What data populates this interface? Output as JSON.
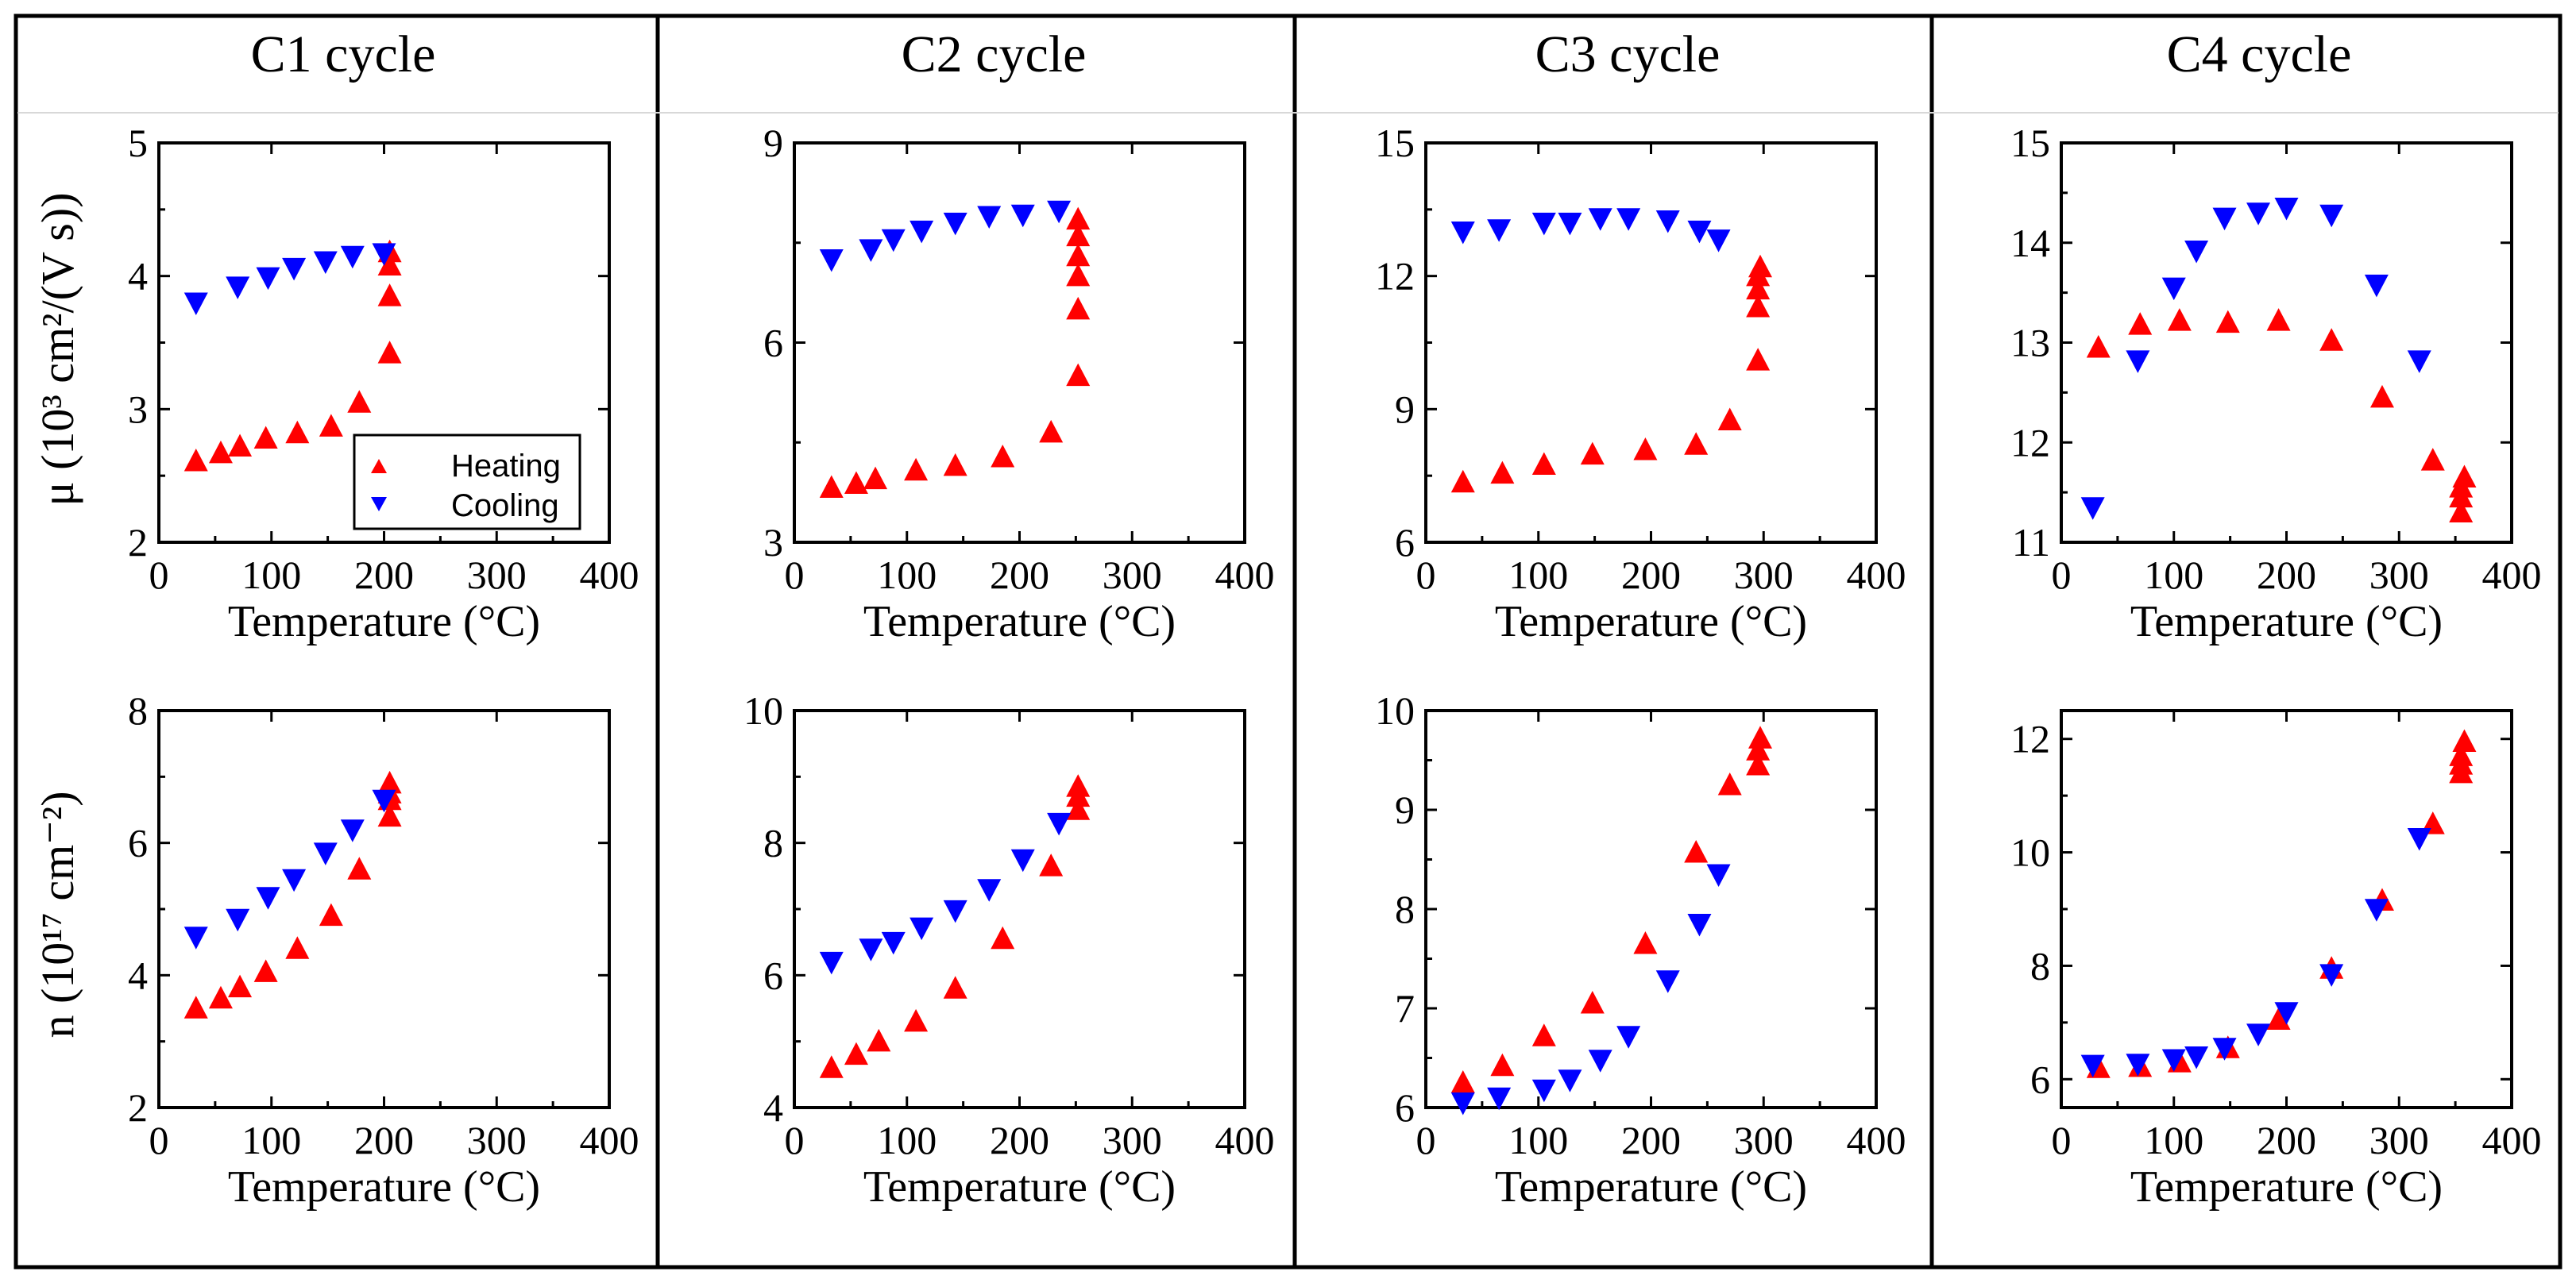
{
  "colors": {
    "heating": "#ff0000",
    "cooling": "#0000ff",
    "frame": "#000000"
  },
  "legend": {
    "heating": "Heating",
    "cooling": "Cooling",
    "placement": "bottom-right of first panel"
  },
  "columns": [
    {
      "title": "C1 cycle"
    },
    {
      "title": "C2 cycle"
    },
    {
      "title": "C3 cycle"
    },
    {
      "title": "C4 cycle"
    }
  ],
  "row_labels": {
    "mobility": "μ (10³ cm²/(V s))",
    "density": "n (10¹⁷ cm⁻²)"
  },
  "chart_data": [
    {
      "type": "scatter",
      "cycle": "C1 cycle",
      "quantity": "mobility",
      "xlabel": "Temperature (°C)",
      "ylabel": "μ (10³ cm²/(V s))",
      "xlim": [
        0,
        400
      ],
      "ylim": [
        2,
        5
      ],
      "xticks": [
        0,
        100,
        200,
        300,
        400
      ],
      "yticks": [
        2,
        3,
        4,
        5
      ],
      "series": [
        {
          "name": "Heating",
          "marker": "triangle-up",
          "points": [
            [
              33,
              2.61
            ],
            [
              55,
              2.67
            ],
            [
              72,
              2.72
            ],
            [
              95,
              2.78
            ],
            [
              123,
              2.82
            ],
            [
              153,
              2.87
            ],
            [
              178,
              3.05
            ],
            [
              205,
              3.42
            ],
            [
              205,
              3.85
            ],
            [
              205,
              4.08
            ],
            [
              205,
              4.18
            ]
          ]
        },
        {
          "name": "Cooling",
          "marker": "triangle-down",
          "points": [
            [
              33,
              3.8
            ],
            [
              70,
              3.92
            ],
            [
              97,
              3.99
            ],
            [
              120,
              4.06
            ],
            [
              148,
              4.11
            ],
            [
              172,
              4.15
            ],
            [
              200,
              4.17
            ]
          ]
        }
      ]
    },
    {
      "type": "scatter",
      "cycle": "C1 cycle",
      "quantity": "density",
      "xlabel": "Temperature (°C)",
      "ylabel": "n (10¹⁷ cm⁻²)",
      "xlim": [
        0,
        400
      ],
      "ylim": [
        2,
        8
      ],
      "xticks": [
        0,
        100,
        200,
        300,
        400
      ],
      "yticks": [
        2,
        4,
        6,
        8
      ],
      "series": [
        {
          "name": "Heating",
          "marker": "triangle-up",
          "points": [
            [
              33,
              3.5
            ],
            [
              55,
              3.65
            ],
            [
              72,
              3.82
            ],
            [
              95,
              4.05
            ],
            [
              123,
              4.4
            ],
            [
              153,
              4.9
            ],
            [
              178,
              5.6
            ],
            [
              205,
              6.4
            ],
            [
              205,
              6.65
            ],
            [
              205,
              6.75
            ],
            [
              205,
              6.9
            ]
          ]
        },
        {
          "name": "Cooling",
          "marker": "triangle-down",
          "points": [
            [
              33,
              4.58
            ],
            [
              70,
              4.85
            ],
            [
              97,
              5.18
            ],
            [
              120,
              5.45
            ],
            [
              148,
              5.85
            ],
            [
              172,
              6.2
            ],
            [
              200,
              6.65
            ]
          ]
        }
      ]
    },
    {
      "type": "scatter",
      "cycle": "C2 cycle",
      "quantity": "mobility",
      "xlabel": "Temperature (°C)",
      "ylabel": "",
      "xlim": [
        0,
        400
      ],
      "ylim": [
        3,
        9
      ],
      "xticks": [
        0,
        100,
        200,
        300,
        400
      ],
      "yticks": [
        3,
        6,
        9
      ],
      "series": [
        {
          "name": "Heating",
          "marker": "triangle-up",
          "points": [
            [
              33,
              3.82
            ],
            [
              55,
              3.88
            ],
            [
              72,
              3.95
            ],
            [
              108,
              4.08
            ],
            [
              143,
              4.15
            ],
            [
              185,
              4.28
            ],
            [
              228,
              4.65
            ],
            [
              252,
              5.5
            ],
            [
              252,
              6.5
            ],
            [
              252,
              7.0
            ],
            [
              252,
              7.3
            ],
            [
              252,
              7.6
            ],
            [
              252,
              7.85
            ]
          ]
        },
        {
          "name": "Cooling",
          "marker": "triangle-down",
          "points": [
            [
              33,
              7.25
            ],
            [
              68,
              7.4
            ],
            [
              88,
              7.55
            ],
            [
              113,
              7.68
            ],
            [
              143,
              7.8
            ],
            [
              173,
              7.9
            ],
            [
              203,
              7.92
            ],
            [
              235,
              7.98
            ]
          ]
        }
      ]
    },
    {
      "type": "scatter",
      "cycle": "C2 cycle",
      "quantity": "density",
      "xlabel": "Temperature (°C)",
      "ylabel": "",
      "xlim": [
        0,
        400
      ],
      "ylim": [
        4,
        10
      ],
      "xticks": [
        0,
        100,
        200,
        300,
        400
      ],
      "yticks": [
        4,
        6,
        8,
        10
      ],
      "series": [
        {
          "name": "Heating",
          "marker": "triangle-up",
          "points": [
            [
              33,
              4.6
            ],
            [
              55,
              4.8
            ],
            [
              75,
              5.0
            ],
            [
              108,
              5.3
            ],
            [
              143,
              5.8
            ],
            [
              185,
              6.55
            ],
            [
              228,
              7.65
            ],
            [
              252,
              8.5
            ],
            [
              252,
              8.7
            ],
            [
              252,
              8.85
            ]
          ]
        },
        {
          "name": "Cooling",
          "marker": "triangle-down",
          "points": [
            [
              33,
              6.2
            ],
            [
              68,
              6.4
            ],
            [
              88,
              6.5
            ],
            [
              113,
              6.72
            ],
            [
              143,
              6.98
            ],
            [
              173,
              7.3
            ],
            [
              203,
              7.75
            ],
            [
              235,
              8.3
            ]
          ]
        }
      ]
    },
    {
      "type": "scatter",
      "cycle": "C3 cycle",
      "quantity": "mobility",
      "xlabel": "Temperature (°C)",
      "ylabel": "",
      "xlim": [
        0,
        400
      ],
      "ylim": [
        6,
        15
      ],
      "xticks": [
        0,
        100,
        200,
        300,
        400
      ],
      "yticks": [
        6,
        9,
        12,
        15
      ],
      "series": [
        {
          "name": "Heating",
          "marker": "triangle-up",
          "points": [
            [
              33,
              7.35
            ],
            [
              68,
              7.55
            ],
            [
              105,
              7.75
            ],
            [
              148,
              7.98
            ],
            [
              195,
              8.08
            ],
            [
              240,
              8.2
            ],
            [
              270,
              8.75
            ],
            [
              295,
              10.1
            ],
            [
              295,
              11.3
            ],
            [
              295,
              11.7
            ],
            [
              295,
              12.0
            ],
            [
              297,
              12.2
            ]
          ]
        },
        {
          "name": "Cooling",
          "marker": "triangle-down",
          "points": [
            [
              33,
              13.0
            ],
            [
              65,
              13.05
            ],
            [
              105,
              13.2
            ],
            [
              128,
              13.2
            ],
            [
              155,
              13.3
            ],
            [
              180,
              13.3
            ],
            [
              215,
              13.25
            ],
            [
              243,
              13.02
            ],
            [
              260,
              12.82
            ]
          ]
        }
      ]
    },
    {
      "type": "scatter",
      "cycle": "C3 cycle",
      "quantity": "density",
      "xlabel": "Temperature (°C)",
      "ylabel": "",
      "xlim": [
        0,
        400
      ],
      "ylim": [
        6,
        10
      ],
      "xticks": [
        0,
        100,
        200,
        300,
        400
      ],
      "yticks": [
        6,
        7,
        8,
        9,
        10
      ],
      "series": [
        {
          "name": "Heating",
          "marker": "triangle-up",
          "points": [
            [
              33,
              6.25
            ],
            [
              68,
              6.42
            ],
            [
              105,
              6.72
            ],
            [
              148,
              7.05
            ],
            [
              195,
              7.65
            ],
            [
              240,
              8.57
            ],
            [
              270,
              9.25
            ],
            [
              295,
              9.45
            ],
            [
              295,
              9.6
            ],
            [
              297,
              9.72
            ]
          ]
        },
        {
          "name": "Cooling",
          "marker": "triangle-down",
          "points": [
            [
              33,
              6.05
            ],
            [
              65,
              6.1
            ],
            [
              105,
              6.18
            ],
            [
              128,
              6.28
            ],
            [
              155,
              6.48
            ],
            [
              180,
              6.72
            ],
            [
              215,
              7.28
            ],
            [
              243,
              7.85
            ],
            [
              260,
              8.35
            ]
          ]
        }
      ]
    },
    {
      "type": "scatter",
      "cycle": "C4 cycle",
      "quantity": "mobility",
      "xlabel": "Temperature (°C)",
      "ylabel": "",
      "xlim": [
        0,
        400
      ],
      "ylim": [
        11,
        15
      ],
      "xticks": [
        0,
        100,
        200,
        300,
        400
      ],
      "yticks": [
        11,
        12,
        13,
        14,
        15
      ],
      "series": [
        {
          "name": "Heating",
          "marker": "triangle-up",
          "points": [
            [
              33,
              12.95
            ],
            [
              70,
              13.18
            ],
            [
              105,
              13.22
            ],
            [
              148,
              13.2
            ],
            [
              193,
              13.22
            ],
            [
              240,
              13.02
            ],
            [
              285,
              12.45
            ],
            [
              330,
              11.82
            ],
            [
              355,
              11.3
            ],
            [
              355,
              11.45
            ],
            [
              355,
              11.55
            ],
            [
              358,
              11.65
            ]
          ]
        },
        {
          "name": "Cooling",
          "marker": "triangle-down",
          "points": [
            [
              28,
              11.35
            ],
            [
              68,
              12.82
            ],
            [
              100,
              13.55
            ],
            [
              120,
              13.92
            ],
            [
              145,
              14.25
            ],
            [
              175,
              14.3
            ],
            [
              200,
              14.35
            ],
            [
              240,
              14.28
            ],
            [
              280,
              13.58
            ],
            [
              318,
              12.82
            ]
          ]
        }
      ]
    },
    {
      "type": "scatter",
      "cycle": "C4 cycle",
      "quantity": "density",
      "xlabel": "Temperature (°C)",
      "ylabel": "",
      "xlim": [
        0,
        400
      ],
      "ylim": [
        5.5,
        12.5
      ],
      "xticks": [
        0,
        100,
        200,
        300,
        400
      ],
      "yticks": [
        6,
        8,
        10,
        12
      ],
      "series": [
        {
          "name": "Heating",
          "marker": "triangle-up",
          "points": [
            [
              33,
              6.2
            ],
            [
              70,
              6.22
            ],
            [
              105,
              6.3
            ],
            [
              148,
              6.55
            ],
            [
              193,
              7.05
            ],
            [
              240,
              7.95
            ],
            [
              285,
              9.15
            ],
            [
              330,
              10.5
            ],
            [
              355,
              11.4
            ],
            [
              355,
              11.55
            ],
            [
              355,
              11.7
            ],
            [
              358,
              11.95
            ]
          ]
        },
        {
          "name": "Cooling",
          "marker": "triangle-down",
          "points": [
            [
              28,
              6.25
            ],
            [
              68,
              6.27
            ],
            [
              100,
              6.35
            ],
            [
              120,
              6.4
            ],
            [
              145,
              6.55
            ],
            [
              175,
              6.8
            ],
            [
              200,
              7.18
            ],
            [
              240,
              7.85
            ],
            [
              280,
              9.0
            ],
            [
              318,
              10.25
            ]
          ]
        }
      ]
    }
  ]
}
